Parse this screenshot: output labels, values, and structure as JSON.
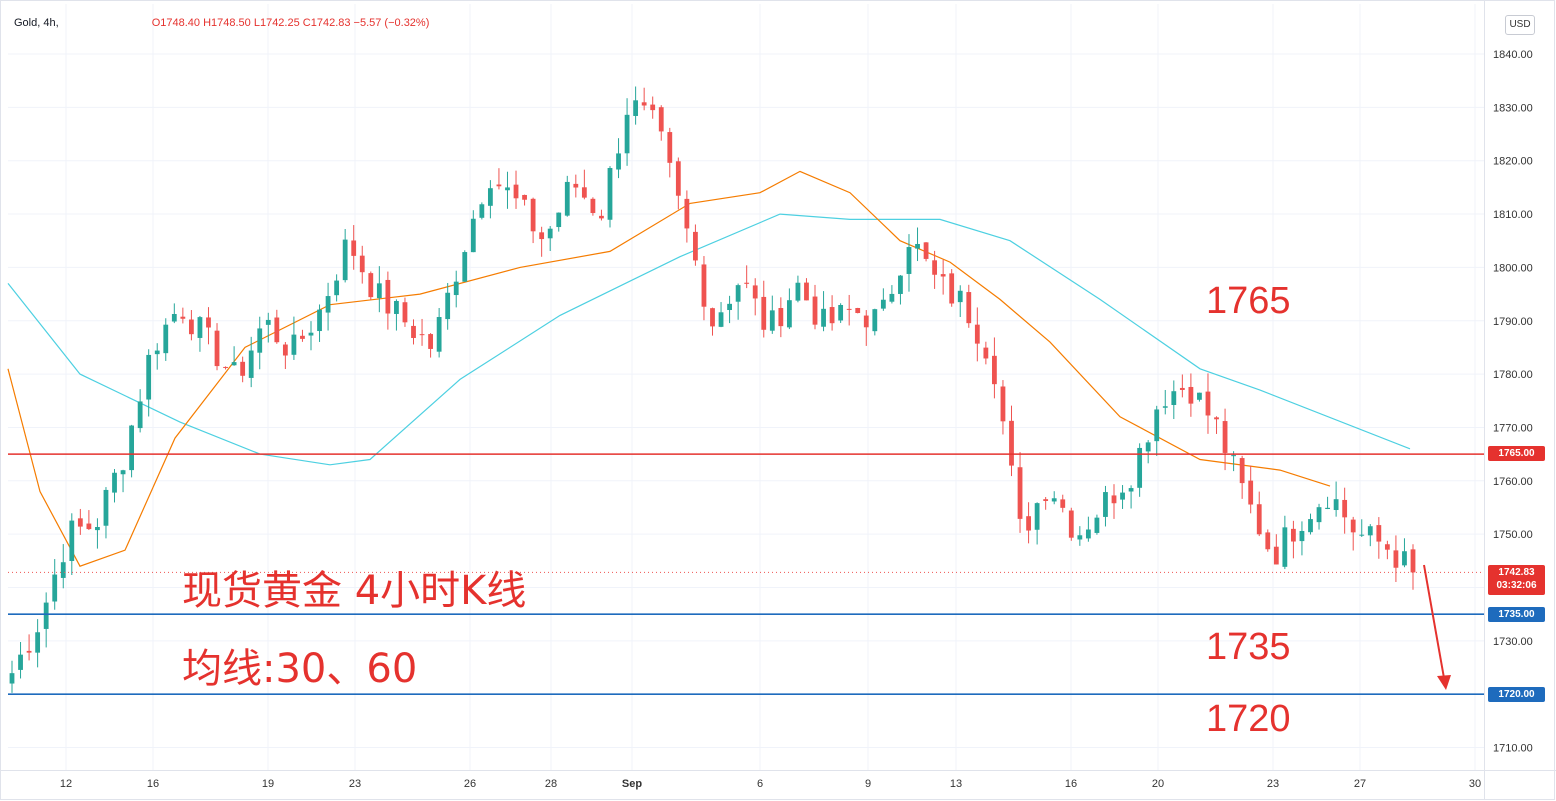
{
  "legend": {
    "symbol": "Gold, 4h,",
    "ohlc": "O1748.40 H1748.50 L1742.25 C1742.83 −5.57 (−0.32%)"
  },
  "currency_button": "USD",
  "annotations": {
    "title": "现货黄金 4小时K线",
    "ma_label": "均线:30、60",
    "level_1765": "1765",
    "level_1735": "1735",
    "level_1720": "1720"
  },
  "price_tags": {
    "h1765": "1765.00",
    "h1735": "1735.00",
    "h1720": "1720.00",
    "last_price": "1742.83",
    "countdown": "03:32:06"
  },
  "colors": {
    "up": "#26a69a",
    "down": "#ef5350",
    "ma30": "#f57c00",
    "ma60": "#4dd0e1",
    "resistance": "#e5322e",
    "support": "#1e6bbd"
  },
  "chart_data": {
    "type": "candlestick",
    "instrument": "Gold",
    "timeframe": "4h",
    "y_axis": {
      "range": [
        1705,
        1843
      ],
      "ticks": [
        "1710.00",
        "1720.00",
        "1730.00",
        "1740.00",
        "1750.00",
        "1760.00",
        "1770.00",
        "1780.00",
        "1790.00",
        "1800.00",
        "1810.00",
        "1820.00",
        "1830.00",
        "1840.00"
      ]
    },
    "x_axis": {
      "labels": [
        "12",
        "16",
        "19",
        "23",
        "26",
        "28",
        "Sep",
        "6",
        "9",
        "13",
        "16",
        "20",
        "23",
        "27",
        "30"
      ]
    },
    "horizontal_lines": [
      1765,
      1735,
      1720
    ],
    "last_price": 1742.83,
    "ohlc_anchor_closes": [
      1724,
      1734,
      1750,
      1752,
      1765,
      1785,
      1793,
      1786,
      1779,
      1790,
      1784,
      1792,
      1805,
      1795,
      1790,
      1785,
      1802,
      1818,
      1812,
      1805,
      1816,
      1810,
      1831,
      1826,
      1808,
      1790,
      1798,
      1788,
      1797,
      1789,
      1792,
      1790,
      1806,
      1797,
      1793,
      1783,
      1750,
      1760,
      1750,
      1756,
      1762,
      1776,
      1778,
      1770,
      1757,
      1746,
      1753,
      1758,
      1750,
      1748,
      1742.83
    ],
    "ma_30_values": [
      1781,
      1758,
      1744,
      1747,
      1768,
      1785,
      1793,
      1795,
      1800,
      1803,
      1812,
      1814,
      1818,
      1814,
      1805,
      1801,
      1794,
      1786,
      1772,
      1764,
      1762,
      1759
    ],
    "ma_60_values": [
      1797,
      1780,
      1771,
      1765,
      1763,
      1764,
      1779,
      1791,
      1802,
      1810,
      1809,
      1809,
      1805,
      1794,
      1781,
      1777,
      1766
    ]
  }
}
